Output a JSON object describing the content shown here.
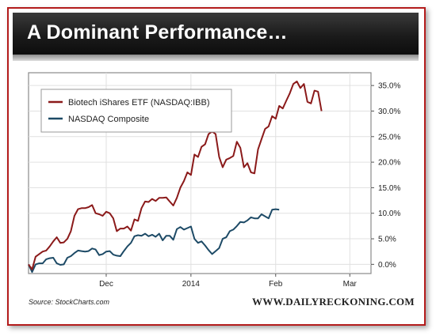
{
  "header": {
    "title": "A Dominant Performance…"
  },
  "footer": {
    "source": "Source: StockCharts.com",
    "site": "WWW.DAILYRECKONING.COM"
  },
  "colors": {
    "accent_red": "#b31b1b",
    "header_dark": "#1b1b1b",
    "ibb": "#8b1a1a",
    "nasdaq": "#1d4a66"
  },
  "chart_data": {
    "type": "line",
    "title": "A Dominant Performance…",
    "xlabel": "",
    "ylabel": "",
    "x_ticks": [
      {
        "label": "Dec",
        "x": 22
      },
      {
        "label": "2014",
        "x": 46
      },
      {
        "label": "Feb",
        "x": 70
      },
      {
        "label": "Mar",
        "x": 91
      }
    ],
    "xlim": [
      0,
      97
    ],
    "ylim": [
      -1.8,
      37.5
    ],
    "y_ticks": [
      {
        "label": "0.0%",
        "value": 0
      },
      {
        "label": "5.0%",
        "value": 5
      },
      {
        "label": "10.0%",
        "value": 10
      },
      {
        "label": "15.0%",
        "value": 15
      },
      {
        "label": "20.0%",
        "value": 20
      },
      {
        "label": "25.0%",
        "value": 25
      },
      {
        "label": "30.0%",
        "value": 30
      },
      {
        "label": "35.0%",
        "value": 35
      }
    ],
    "grid": true,
    "legend": "top-left",
    "series": [
      {
        "name": "Biotech iShares ETF (NASDAQ:IBB)",
        "values": [
          [
            0,
            0
          ],
          [
            1,
            -1
          ],
          [
            2,
            1.5
          ],
          [
            3,
            2
          ],
          [
            4,
            2.5
          ],
          [
            5,
            2.7
          ],
          [
            6,
            3.5
          ],
          [
            7,
            4.5
          ],
          [
            8,
            5.3
          ],
          [
            9,
            4.2
          ],
          [
            10,
            4.3
          ],
          [
            11,
            5
          ],
          [
            12,
            6.5
          ],
          [
            13,
            9.5
          ],
          [
            14,
            10.8
          ],
          [
            15,
            11
          ],
          [
            16,
            11
          ],
          [
            17,
            11.2
          ],
          [
            18,
            11.6
          ],
          [
            19,
            10
          ],
          [
            20,
            9.8
          ],
          [
            21,
            9.5
          ],
          [
            22,
            10.3
          ],
          [
            23,
            10
          ],
          [
            24,
            9
          ],
          [
            25,
            6.5
          ],
          [
            26,
            7
          ],
          [
            27,
            7
          ],
          [
            28,
            7.4
          ],
          [
            29,
            6.6
          ],
          [
            30,
            8.8
          ],
          [
            31,
            8.5
          ],
          [
            32,
            11
          ],
          [
            33,
            12.3
          ],
          [
            34,
            12.2
          ],
          [
            35,
            12.8
          ],
          [
            36,
            12.4
          ],
          [
            37,
            13
          ],
          [
            38,
            13
          ],
          [
            39,
            13.1
          ],
          [
            40,
            12.3
          ],
          [
            41,
            11.5
          ],
          [
            42,
            13
          ],
          [
            43,
            15
          ],
          [
            44,
            16.3
          ],
          [
            45,
            18
          ],
          [
            46,
            17.5
          ],
          [
            47,
            21.5
          ],
          [
            48,
            21
          ],
          [
            49,
            23
          ],
          [
            50,
            23.5
          ],
          [
            51,
            25.5
          ],
          [
            52,
            26
          ],
          [
            53,
            25.5
          ],
          [
            54,
            21
          ],
          [
            55,
            19
          ],
          [
            56,
            20.5
          ],
          [
            57,
            20.8
          ],
          [
            58,
            21.2
          ],
          [
            59,
            24
          ],
          [
            60,
            22.8
          ],
          [
            61,
            19
          ],
          [
            62,
            19.8
          ],
          [
            63,
            18
          ],
          [
            64,
            17.8
          ],
          [
            65,
            22.5
          ],
          [
            66,
            24.5
          ],
          [
            67,
            26.5
          ],
          [
            68,
            27
          ],
          [
            69,
            29
          ],
          [
            70,
            28.5
          ],
          [
            71,
            31
          ],
          [
            72,
            30.5
          ],
          [
            73,
            32
          ],
          [
            74,
            33.5
          ],
          [
            75,
            35.3
          ],
          [
            76,
            35.8
          ],
          [
            77,
            34.5
          ],
          [
            78,
            35.3
          ],
          [
            79,
            31.8
          ],
          [
            80,
            31.5
          ],
          [
            81,
            34
          ],
          [
            82,
            33.8
          ],
          [
            83,
            30
          ]
        ]
      },
      {
        "name": "NASDAQ Composite",
        "values": [
          [
            0,
            0
          ],
          [
            1,
            -1.5
          ],
          [
            2,
            0
          ],
          [
            3,
            0.2
          ],
          [
            4,
            0.2
          ],
          [
            5,
            1
          ],
          [
            6,
            1.2
          ],
          [
            7,
            1.3
          ],
          [
            8,
            0.2
          ],
          [
            9,
            -0.1
          ],
          [
            10,
            0
          ],
          [
            11,
            1.3
          ],
          [
            12,
            1.6
          ],
          [
            13,
            2.2
          ],
          [
            14,
            2.7
          ],
          [
            15,
            2.6
          ],
          [
            16,
            2.5
          ],
          [
            17,
            2.6
          ],
          [
            18,
            3.1
          ],
          [
            19,
            2.9
          ],
          [
            20,
            1.8
          ],
          [
            21,
            2
          ],
          [
            22,
            2.5
          ],
          [
            23,
            2.6
          ],
          [
            24,
            1.9
          ],
          [
            25,
            1.7
          ],
          [
            26,
            1.6
          ],
          [
            27,
            2.6
          ],
          [
            28,
            3.5
          ],
          [
            29,
            4.2
          ],
          [
            30,
            5.5
          ],
          [
            31,
            5.7
          ],
          [
            32,
            5.6
          ],
          [
            33,
            6
          ],
          [
            34,
            5.5
          ],
          [
            35,
            5.8
          ],
          [
            36,
            5.4
          ],
          [
            37,
            6
          ],
          [
            38,
            4.7
          ],
          [
            39,
            5.6
          ],
          [
            40,
            5.6
          ],
          [
            41,
            4.8
          ],
          [
            42,
            6.9
          ],
          [
            43,
            7.3
          ],
          [
            44,
            6.8
          ],
          [
            45,
            7.1
          ],
          [
            46,
            7.4
          ],
          [
            47,
            5
          ],
          [
            48,
            4.2
          ],
          [
            49,
            4.5
          ],
          [
            50,
            3.7
          ],
          [
            51,
            2.8
          ],
          [
            52,
            2
          ],
          [
            53,
            2.6
          ],
          [
            54,
            3.2
          ],
          [
            55,
            5
          ],
          [
            56,
            5.3
          ],
          [
            57,
            6.5
          ],
          [
            58,
            6.8
          ],
          [
            59,
            7.5
          ],
          [
            60,
            8.3
          ],
          [
            61,
            8.2
          ],
          [
            62,
            8.6
          ],
          [
            63,
            9.2
          ],
          [
            64,
            9
          ],
          [
            65,
            9
          ],
          [
            66,
            9.8
          ],
          [
            67,
            9.4
          ],
          [
            68,
            9
          ],
          [
            69,
            10.7
          ],
          [
            70,
            10.8
          ],
          [
            71,
            10.7
          ]
        ]
      }
    ]
  }
}
